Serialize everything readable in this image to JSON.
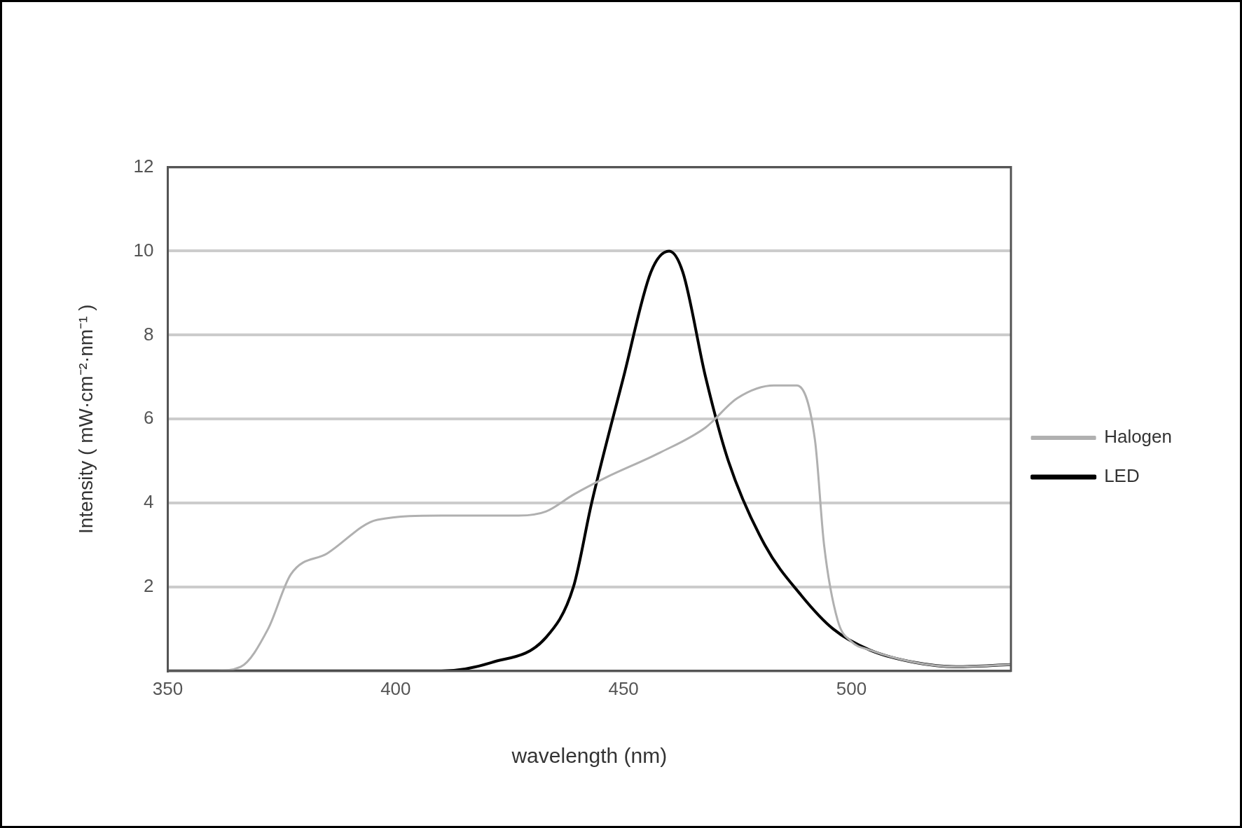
{
  "chart_data": {
    "type": "line",
    "xlabel": "wavelength (nm)",
    "ylabel": "Intensity ( mW·cm⁻²·nm⁻¹ )",
    "xlim": [
      350,
      535
    ],
    "xticks": [
      350,
      400,
      450,
      500
    ],
    "ylim": [
      0,
      12
    ],
    "yticks": [
      {
        "value": 0,
        "label": null
      },
      2,
      4,
      6,
      8,
      10,
      12
    ],
    "grid": "y",
    "legend": "right",
    "marker": "none",
    "line_style": "solid",
    "series": [
      {
        "name": "Halogen",
        "color": "#b0b0b0",
        "x": [
          350,
          360,
          366,
          372,
          377,
          385,
          396,
          410,
          427,
          433,
          439,
          446,
          458,
          468,
          475,
          483,
          488,
          492,
          494,
          497,
          500,
          504,
          514,
          523,
          535
        ],
        "values": [
          0,
          0,
          0.1,
          1,
          2.3,
          2.8,
          3.6,
          3.7,
          3.7,
          3.8,
          4.2,
          4.6,
          5.2,
          5.8,
          6.5,
          6.8,
          6.8,
          5.5,
          3,
          1.2,
          0.7,
          0.5,
          0.2,
          0.1,
          0.15
        ]
      },
      {
        "name": "LED",
        "color": "#000000",
        "x": [
          350,
          380,
          410,
          421,
          433,
          439,
          443,
          450,
          456,
          460,
          463,
          468,
          473,
          481,
          489,
          496,
          504,
          514,
          523,
          535
        ],
        "values": [
          0,
          0,
          0,
          0.2,
          0.8,
          2,
          4,
          7,
          9.5,
          10,
          9.5,
          7,
          5,
          3,
          1.8,
          1,
          0.5,
          0.2,
          0.1,
          0.15
        ]
      }
    ]
  }
}
